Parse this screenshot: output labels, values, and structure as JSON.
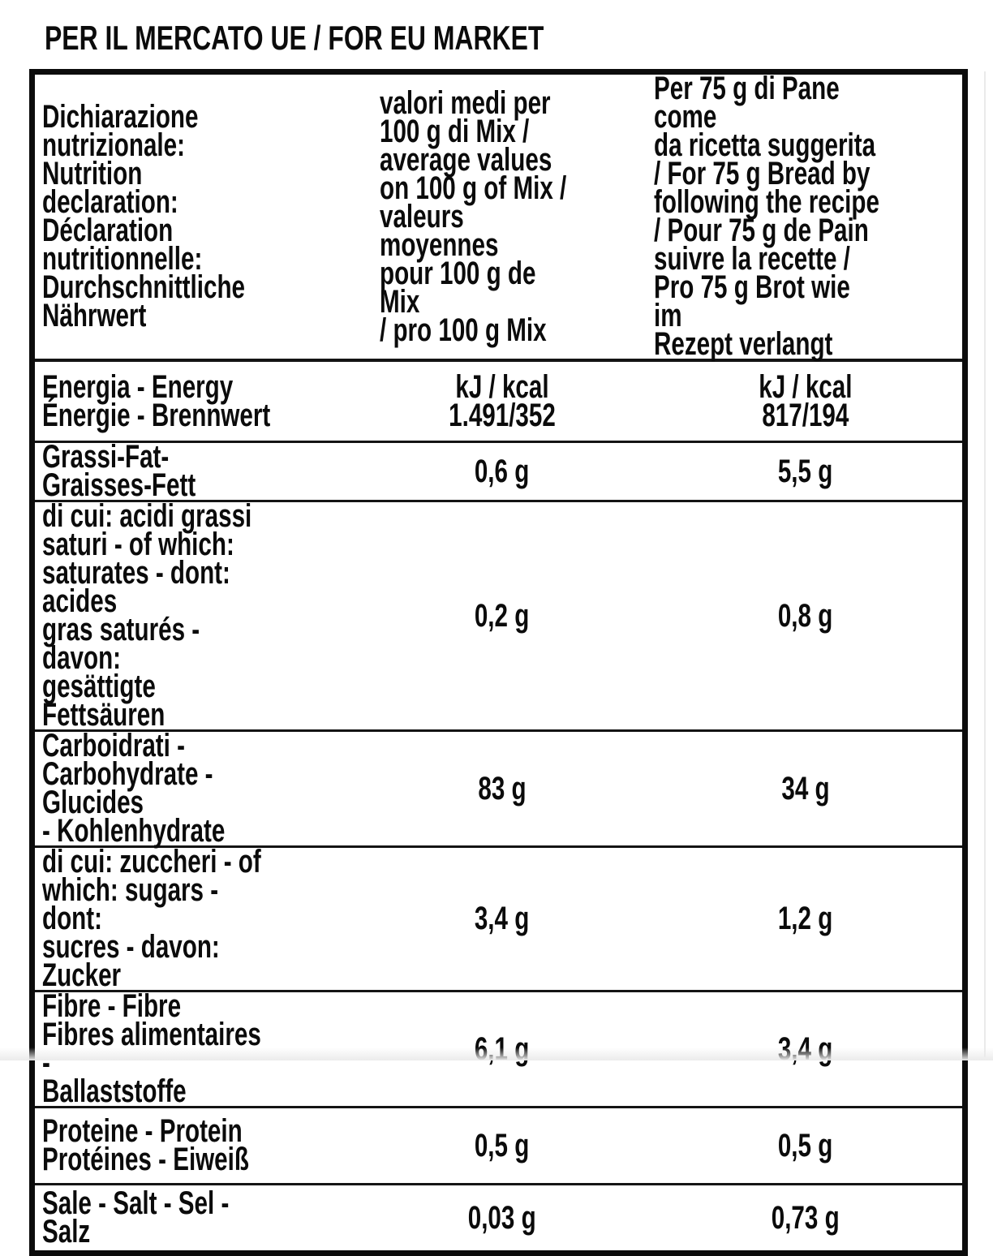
{
  "title": "PER IL MERCATO UE / FOR EU MARKET",
  "colors": {
    "text": "#0b0b0b",
    "border": "#0c0c0c",
    "background": "#ffffff"
  },
  "table": {
    "header": {
      "label": "Dichiarazione\nnutrizionale:\nNutrition declaration:\nDéclaration\nnutritionnelle:\nDurchschnittliche\nNährwert",
      "per_100g": "valori medi per\n100 g di Mix /\naverage values\non 100 g of Mix /\nvaleurs moyennes\npour 100 g de Mix\n/ pro 100 g Mix",
      "per_75g": "Per 75 g di Pane come\nda ricetta suggerita\n/ For 75 g Bread by\nfollowing the recipe\n/ Pour 75 g de Pain\nsuivre la recette /\nPro 75 g Brot wie im\nRezept verlangt"
    },
    "rows": [
      {
        "label": "Energia - Energy\nÉnergie - Brennwert",
        "per_100g": "kJ / kcal\n1.491/352",
        "per_75g": "kJ / kcal\n817/194"
      },
      {
        "label": "Grassi-Fat-Graisses-Fett",
        "per_100g": "0,6 g",
        "per_75g": "5,5 g"
      },
      {
        "label": "di cui: acidi grassi\nsaturi - of which:\nsaturates - dont: acides\ngras saturés - davon:\ngesättigte Fettsäuren",
        "per_100g": "0,2 g",
        "per_75g": "0,8 g"
      },
      {
        "label": "Carboidrati -\nCarbohydrate - Glucides\n- Kohlenhydrate",
        "per_100g": "83 g",
        "per_75g": "34 g"
      },
      {
        "label": "di cui: zuccheri - of\nwhich: sugars - dont:\nsucres - davon: Zucker",
        "per_100g": "3,4 g",
        "per_75g": "1,2 g"
      },
      {
        "label": "Fibre - Fibre\nFibres alimentaires -\nBallaststoffe",
        "per_100g": "6,1 g",
        "per_75g": "3,4 g"
      },
      {
        "label": "Proteine - Protein\nProtéines - Eiweiß",
        "per_100g": "0,5 g",
        "per_75g": "0,5 g"
      },
      {
        "label": "Sale - Salt - Sel - Salz",
        "per_100g": "0,03 g",
        "per_75g": "0,73 g"
      }
    ]
  }
}
